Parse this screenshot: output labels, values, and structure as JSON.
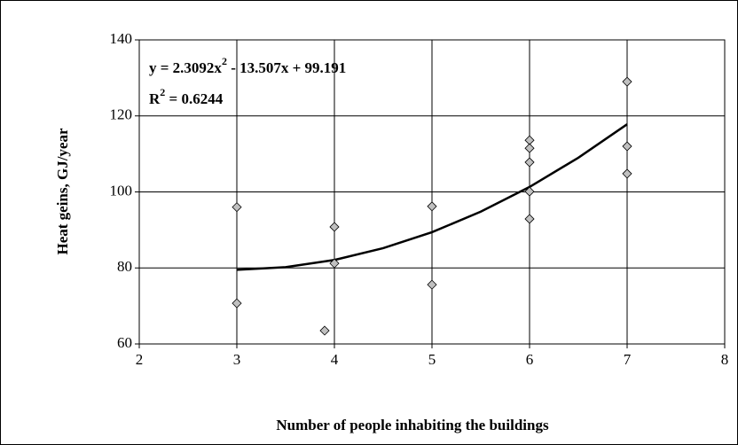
{
  "chart_data": {
    "type": "scatter",
    "x_label": "Number of people inhabiting the buildings",
    "y_label": "Heat geins, GJ/year",
    "equation_parts": [
      "y = 2.3092x",
      "2",
      " - 13.507x + 99.191"
    ],
    "r2_parts": [
      "R",
      "2",
      " = 0.6244"
    ],
    "xlim": [
      2,
      8
    ],
    "xticks": [
      2,
      3,
      4,
      5,
      6,
      7,
      8
    ],
    "ylim": [
      60,
      140
    ],
    "yticks": [
      60,
      80,
      100,
      120,
      140
    ],
    "grid": true,
    "color": "#c0c0c0",
    "x": [
      3,
      3,
      3.9,
      4,
      4,
      5,
      5,
      6,
      6,
      6,
      6,
      6,
      7,
      7,
      7
    ],
    "values": [
      96,
      70.7,
      63.5,
      90.8,
      81.2,
      96.2,
      75.6,
      113.6,
      111.5,
      107.8,
      100.1,
      92.9,
      129,
      112,
      104.8
    ],
    "trendline": {
      "x": [
        3,
        3.5,
        4,
        4.5,
        5,
        5.5,
        6,
        6.5,
        7
      ],
      "values": [
        79.5,
        80.2,
        82.1,
        85.2,
        89.4,
        94.8,
        101.3,
        109.0,
        117.8
      ]
    }
  }
}
